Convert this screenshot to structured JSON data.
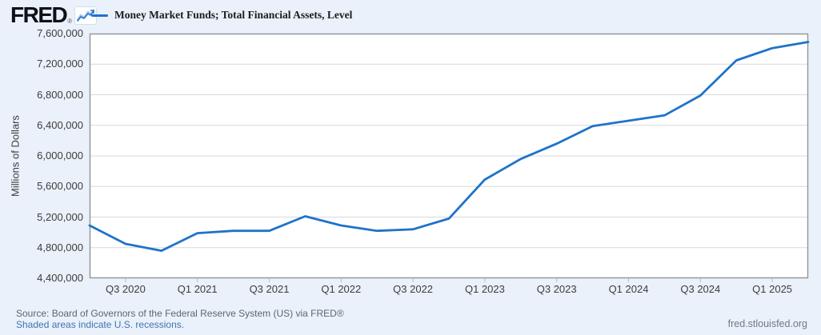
{
  "header": {
    "logo_text": "FRED",
    "registered_mark": "®",
    "legend_label": "Money Market Funds; Total Financial Assets, Level"
  },
  "chart_data": {
    "type": "line",
    "title": "Money Market Funds; Total Financial Assets, Level",
    "ylabel": "Millions of Dollars",
    "x": [
      "2020 Q2",
      "2020 Q3",
      "2020 Q4",
      "2021 Q1",
      "2021 Q2",
      "2021 Q3",
      "2021 Q4",
      "2022 Q1",
      "2022 Q2",
      "2022 Q3",
      "2022 Q4",
      "2023 Q1",
      "2023 Q2",
      "2023 Q3",
      "2023 Q4",
      "2024 Q1",
      "2024 Q2",
      "2024 Q3",
      "2024 Q4",
      "2025 Q1",
      "2025 Q2"
    ],
    "values": [
      5090000,
      4850000,
      4760000,
      4990000,
      5020000,
      5020000,
      5210000,
      5090000,
      5020000,
      5040000,
      5180000,
      5690000,
      5960000,
      6160000,
      6390000,
      6460000,
      6530000,
      6790000,
      7250000,
      7410000,
      7490000
    ],
    "ylim": [
      4400000,
      7600000
    ],
    "ytick_interval": 400000,
    "ytick_labels": [
      "7,600,000",
      "7,200,000",
      "6,800,000",
      "6,400,000",
      "6,000,000",
      "5,600,000",
      "5,200,000",
      "4,800,000",
      "4,400,000"
    ],
    "xtick_labels": [
      "Q3 2020",
      "Q1 2021",
      "Q3 2021",
      "Q1 2022",
      "Q3 2022",
      "Q1 2023",
      "Q3 2023",
      "Q1 2024",
      "Q3 2024",
      "Q1 2025"
    ],
    "xtick_indices": [
      1,
      3,
      5,
      7,
      9,
      11,
      13,
      15,
      17,
      19
    ],
    "grid": "horizontal",
    "legend_position": "top-left",
    "line_color": "#1e73c9",
    "grid_color": "#d9d9d9",
    "border_color": "#8f9499",
    "background_color": "#eaf1fa",
    "plot_background": "#ffffff"
  },
  "footer": {
    "source_line": "Source: Board of Governors of the Federal Reserve System (US) via FRED®",
    "recession_note": "Shaded areas indicate U.S. recessions.",
    "site_link": "fred.stlouisfed.org"
  }
}
